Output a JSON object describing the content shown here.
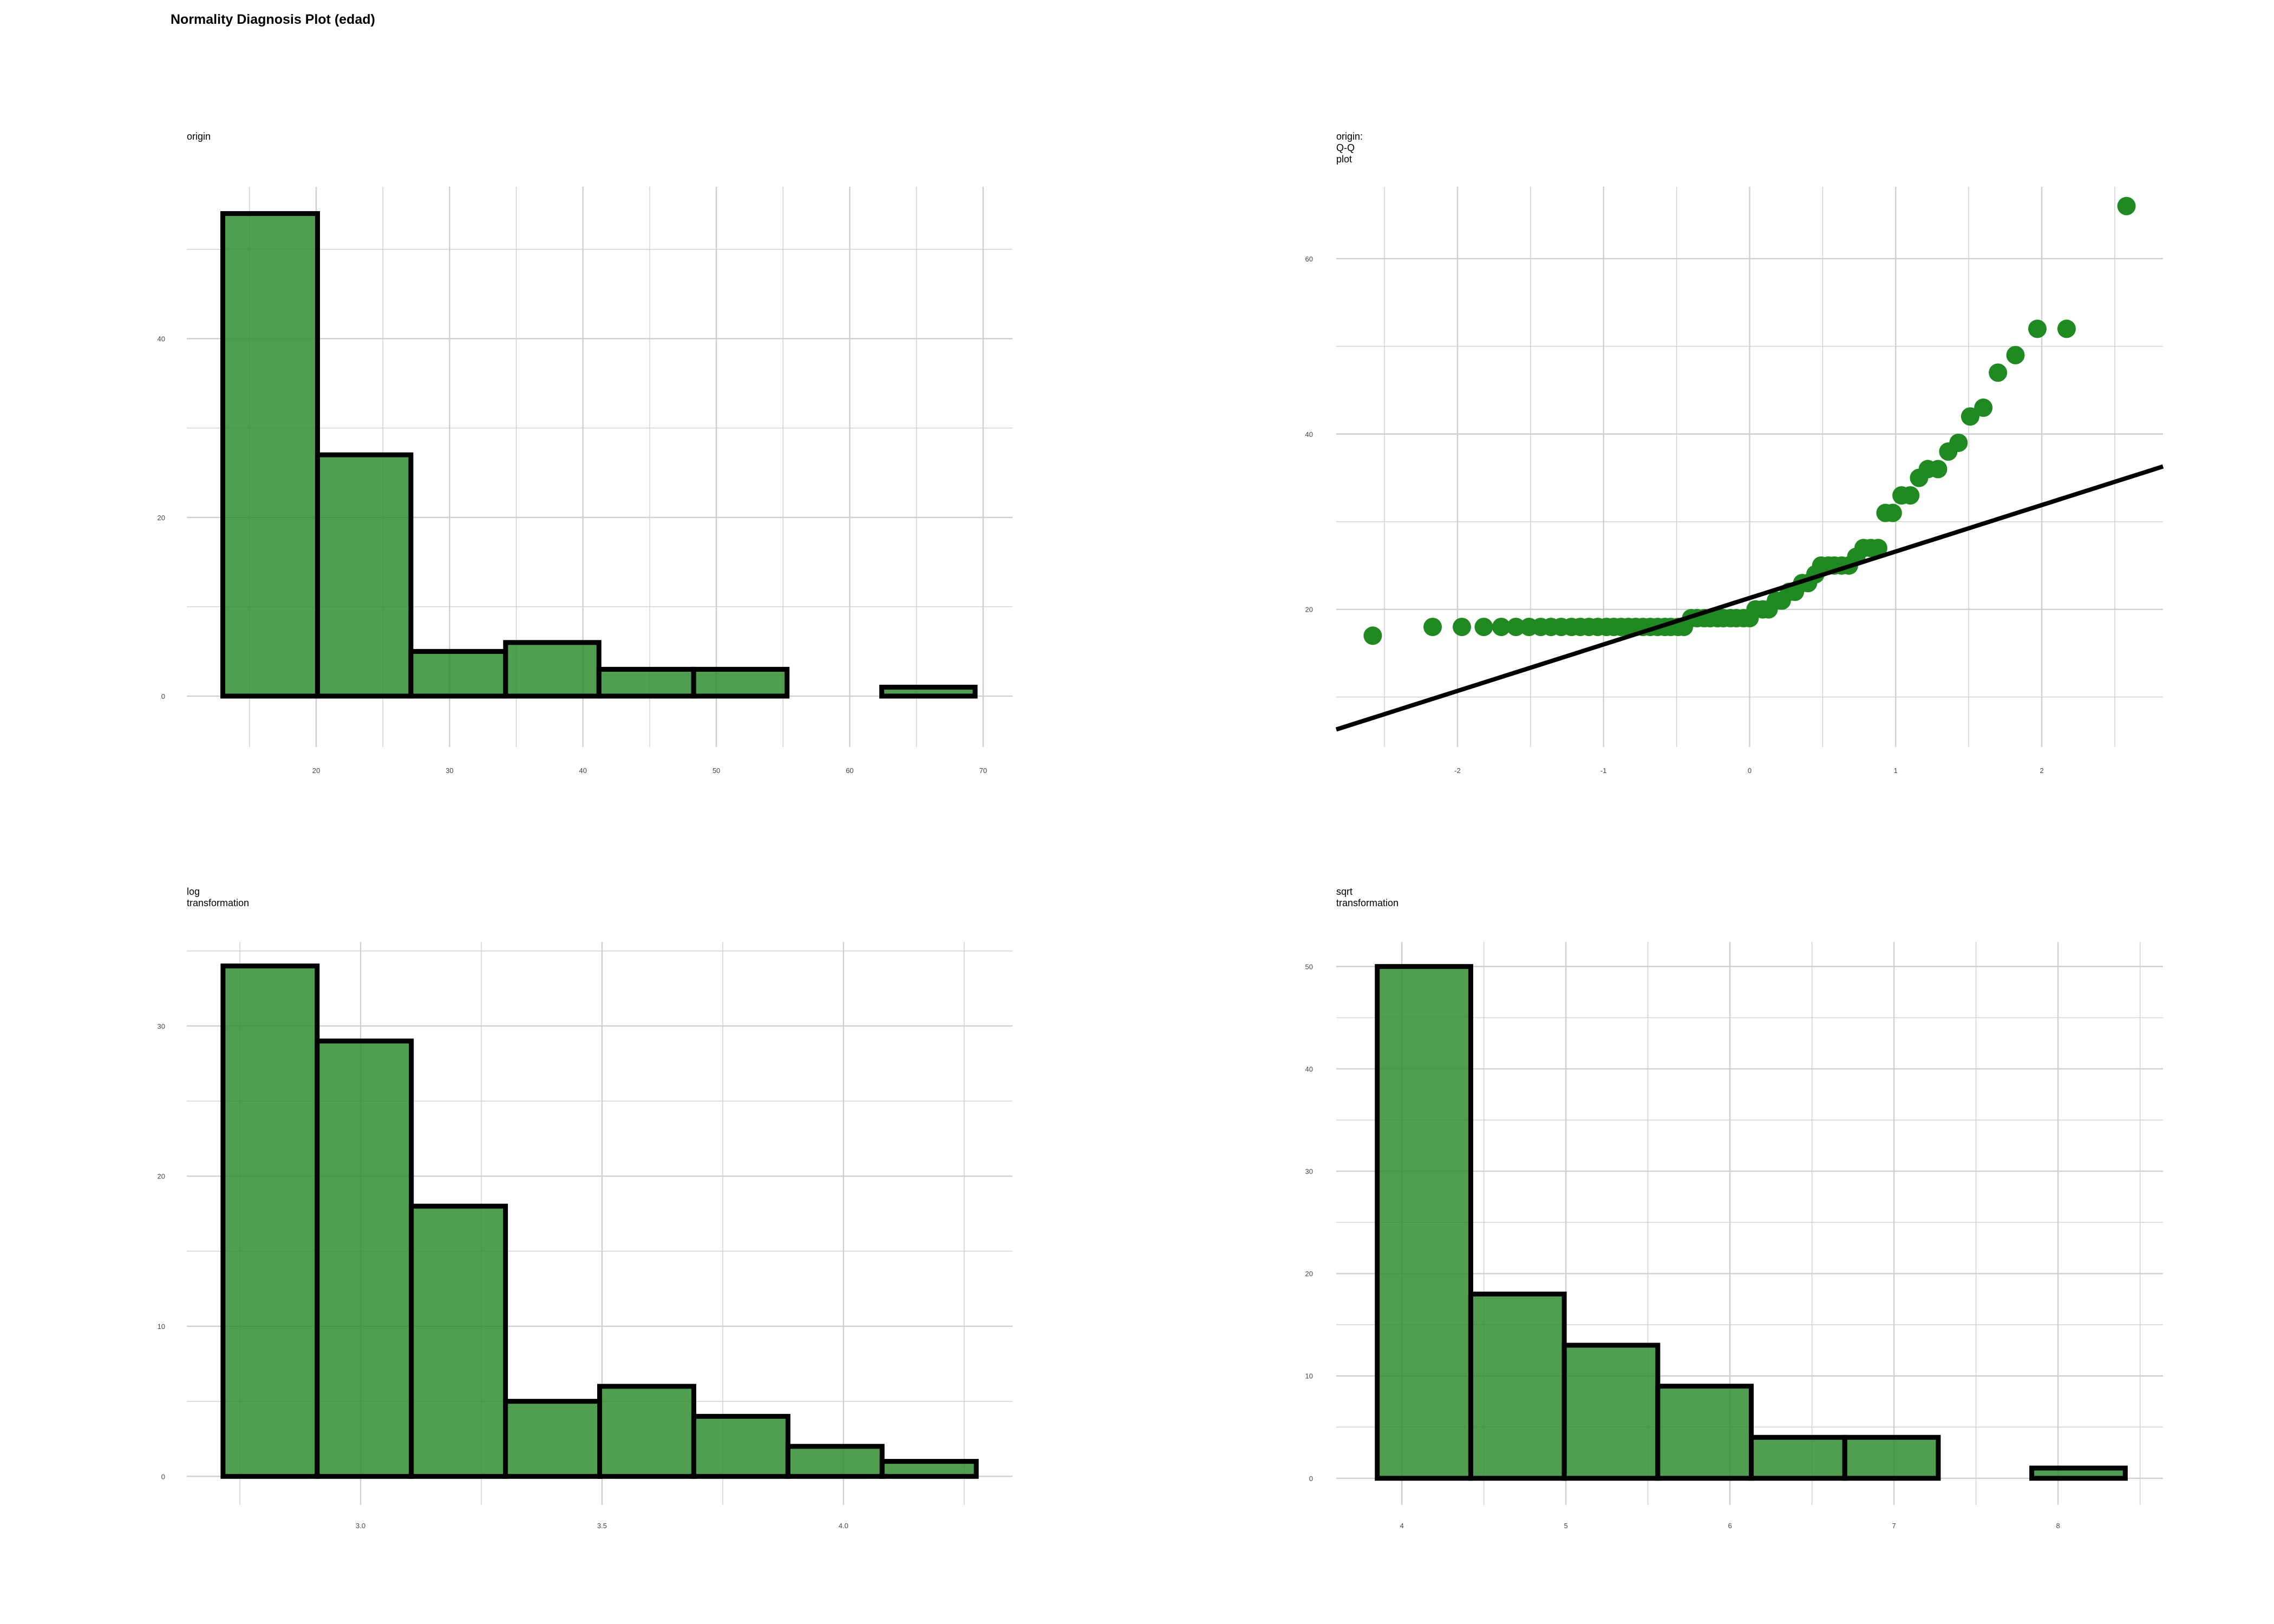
{
  "title": "Normality Diagnosis Plot (edad)",
  "colors": {
    "fill": "#2a8a2a",
    "fill_opacity": 0.82,
    "stroke": "#000000",
    "grid": "#cfcfcf",
    "point": "#1f8a1f"
  },
  "chart_data": [
    {
      "id": "origin",
      "type": "bar",
      "title": "origin",
      "bins": [
        {
          "x0": 13.0,
          "x1": 20.1,
          "count": 54
        },
        {
          "x0": 20.1,
          "x1": 27.1,
          "count": 27
        },
        {
          "x0": 27.1,
          "x1": 34.2,
          "count": 5
        },
        {
          "x0": 34.2,
          "x1": 41.2,
          "count": 6
        },
        {
          "x0": 41.2,
          "x1": 48.3,
          "count": 3
        },
        {
          "x0": 48.3,
          "x1": 55.3,
          "count": 3
        },
        {
          "x0": 55.3,
          "x1": 62.4,
          "count": 0
        },
        {
          "x0": 62.4,
          "x1": 69.4,
          "count": 1
        }
      ],
      "xlim": [
        10.3,
        72.2
      ],
      "ylim": [
        -5.7,
        57.0
      ],
      "x_ticks": [
        20,
        30,
        40,
        50,
        60,
        70
      ],
      "y_ticks": [
        0,
        20,
        40
      ],
      "grid": true
    },
    {
      "id": "qq",
      "type": "scatter",
      "title": "origin: Q-Q plot",
      "points": [
        [
          -2.58,
          17
        ],
        [
          -2.17,
          18
        ],
        [
          -1.97,
          18
        ],
        [
          -1.82,
          18
        ],
        [
          -1.7,
          18
        ],
        [
          -1.6,
          18
        ],
        [
          -1.51,
          18
        ],
        [
          -1.43,
          18
        ],
        [
          -1.36,
          18
        ],
        [
          -1.29,
          18
        ],
        [
          -1.22,
          18
        ],
        [
          -1.16,
          18
        ],
        [
          -1.1,
          18
        ],
        [
          -1.04,
          18
        ],
        [
          -0.98,
          18
        ],
        [
          -0.93,
          18
        ],
        [
          -0.88,
          18
        ],
        [
          -0.83,
          18
        ],
        [
          -0.78,
          18
        ],
        [
          -0.73,
          18
        ],
        [
          -0.68,
          18
        ],
        [
          -0.63,
          18
        ],
        [
          -0.58,
          18
        ],
        [
          -0.54,
          18
        ],
        [
          -0.49,
          18
        ],
        [
          -0.45,
          18
        ],
        [
          -0.4,
          19
        ],
        [
          -0.36,
          19
        ],
        [
          -0.31,
          19
        ],
        [
          -0.27,
          19
        ],
        [
          -0.22,
          19
        ],
        [
          -0.18,
          19
        ],
        [
          -0.13,
          19
        ],
        [
          -0.09,
          19
        ],
        [
          -0.04,
          19
        ],
        [
          0.0,
          19
        ],
        [
          0.04,
          20
        ],
        [
          0.09,
          20
        ],
        [
          0.13,
          20
        ],
        [
          0.18,
          21
        ],
        [
          0.22,
          21
        ],
        [
          0.27,
          22
        ],
        [
          0.31,
          22
        ],
        [
          0.36,
          23
        ],
        [
          0.4,
          23
        ],
        [
          0.45,
          24
        ],
        [
          0.49,
          25
        ],
        [
          0.54,
          25
        ],
        [
          0.58,
          25
        ],
        [
          0.63,
          25
        ],
        [
          0.68,
          25
        ],
        [
          0.73,
          26
        ],
        [
          0.78,
          27
        ],
        [
          0.83,
          27
        ],
        [
          0.88,
          27
        ],
        [
          0.93,
          31
        ],
        [
          0.98,
          31
        ],
        [
          1.04,
          33
        ],
        [
          1.1,
          33
        ],
        [
          1.16,
          35
        ],
        [
          1.22,
          36
        ],
        [
          1.29,
          36
        ],
        [
          1.36,
          38
        ],
        [
          1.43,
          39
        ],
        [
          1.51,
          42
        ],
        [
          1.6,
          43
        ],
        [
          1.7,
          47
        ],
        [
          1.82,
          49
        ],
        [
          1.97,
          52
        ],
        [
          2.17,
          52
        ],
        [
          2.58,
          66
        ]
      ],
      "line": {
        "x": [
          -2.83,
          2.83
        ],
        "y": [
          6.3,
          36.3
        ]
      },
      "xlim": [
        -2.83,
        2.83
      ],
      "ylim": [
        4.3,
        68.2
      ],
      "x_ticks": [
        -2,
        -1,
        0,
        1,
        2
      ],
      "y_ticks": [
        20,
        40,
        60
      ],
      "grid": true
    },
    {
      "id": "log",
      "type": "bar",
      "title": "log transformation",
      "bins": [
        {
          "x0": 2.715,
          "x1": 2.91,
          "count": 34
        },
        {
          "x0": 2.91,
          "x1": 3.105,
          "count": 29
        },
        {
          "x0": 3.105,
          "x1": 3.3,
          "count": 18
        },
        {
          "x0": 3.3,
          "x1": 3.495,
          "count": 5
        },
        {
          "x0": 3.495,
          "x1": 3.69,
          "count": 6
        },
        {
          "x0": 3.69,
          "x1": 3.885,
          "count": 4
        },
        {
          "x0": 3.885,
          "x1": 4.08,
          "count": 2
        },
        {
          "x0": 4.08,
          "x1": 4.275,
          "count": 1
        }
      ],
      "xlim": [
        2.64,
        4.35
      ],
      "ylim": [
        -1.9,
        35.6
      ],
      "x_ticks": [
        3.0,
        3.5,
        4.0
      ],
      "x_tick_labels": [
        "3.0",
        "3.5",
        "4.0"
      ],
      "y_ticks": [
        0,
        10,
        20,
        30
      ],
      "grid": true
    },
    {
      "id": "sqrt",
      "type": "bar",
      "title": "sqrt transformation",
      "bins": [
        {
          "x0": 3.85,
          "x1": 4.42,
          "count": 50
        },
        {
          "x0": 4.42,
          "x1": 4.99,
          "count": 18
        },
        {
          "x0": 4.99,
          "x1": 5.56,
          "count": 13
        },
        {
          "x0": 5.56,
          "x1": 6.13,
          "count": 9
        },
        {
          "x0": 6.13,
          "x1": 6.7,
          "count": 4
        },
        {
          "x0": 6.7,
          "x1": 7.27,
          "count": 4
        },
        {
          "x0": 7.27,
          "x1": 7.84,
          "count": 0
        },
        {
          "x0": 7.84,
          "x1": 8.41,
          "count": 1
        }
      ],
      "xlim": [
        3.6,
        8.64
      ],
      "ylim": [
        -2.6,
        52.4
      ],
      "x_ticks": [
        4,
        5,
        6,
        7,
        8
      ],
      "y_ticks": [
        0,
        10,
        20,
        30,
        40,
        50
      ],
      "grid": true
    }
  ]
}
